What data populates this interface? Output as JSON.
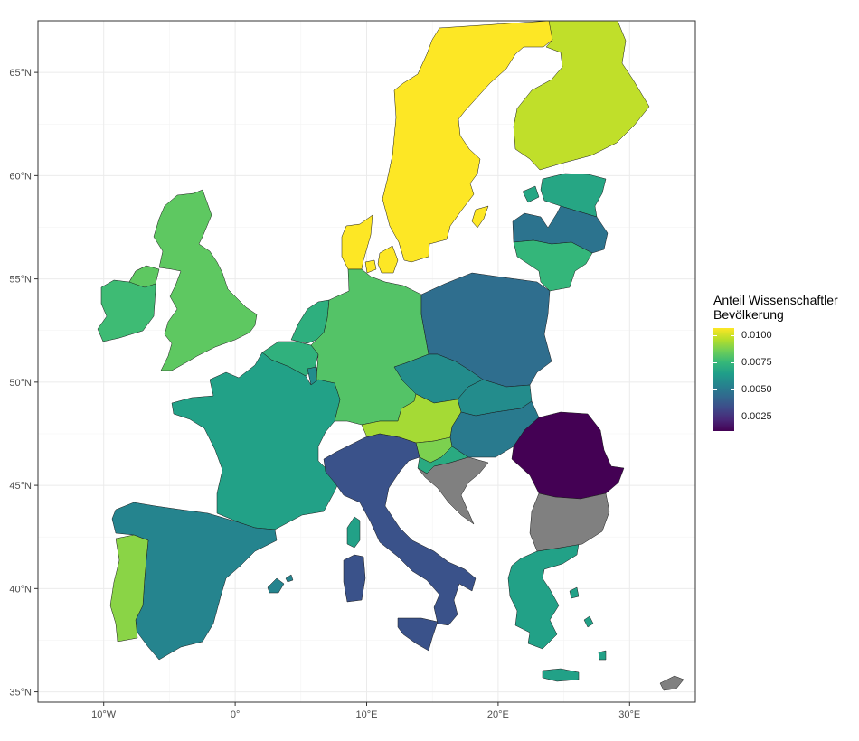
{
  "chart_data": {
    "type": "choropleth",
    "projection": "equirectangular",
    "xlim": [
      -15,
      35
    ],
    "ylim": [
      34.5,
      67.5
    ],
    "grid": true,
    "x_ticks": [
      {
        "value": -10,
        "label": "10°W"
      },
      {
        "value": 0,
        "label": "0°"
      },
      {
        "value": 10,
        "label": "10°E"
      },
      {
        "value": 20,
        "label": "20°E"
      },
      {
        "value": 30,
        "label": "30°E"
      }
    ],
    "y_ticks": [
      {
        "value": 35,
        "label": "35°N"
      },
      {
        "value": 40,
        "label": "40°N"
      },
      {
        "value": 45,
        "label": "45°N"
      },
      {
        "value": 50,
        "label": "50°N"
      },
      {
        "value": 55,
        "label": "55°N"
      },
      {
        "value": 60,
        "label": "60°N"
      },
      {
        "value": 65,
        "label": "65°N"
      }
    ],
    "legend": {
      "title_line1": "Anteil Wissenschaftler",
      "title_line2": "Bevölkerung",
      "placement": "right",
      "min": 0.0012,
      "max": 0.0107,
      "ticks": [
        {
          "value": 0.01,
          "label": "0.0100"
        },
        {
          "value": 0.0075,
          "label": "0.0075"
        },
        {
          "value": 0.005,
          "label": "0.0050"
        },
        {
          "value": 0.0025,
          "label": "0.0025"
        }
      ],
      "palette": [
        "#440154",
        "#482878",
        "#3e4a89",
        "#31688e",
        "#26828e",
        "#1f9e89",
        "#35b779",
        "#6ece58",
        "#b5de2b",
        "#fde725"
      ]
    },
    "missing_color": "#808080",
    "regions": [
      {
        "name": "Sweden",
        "value": 0.0107
      },
      {
        "name": "Finland",
        "value": 0.0098
      },
      {
        "name": "Denmark",
        "value": 0.0107
      },
      {
        "name": "Estonia",
        "value": 0.0068
      },
      {
        "name": "Latvia",
        "value": 0.0048
      },
      {
        "name": "Lithuania",
        "value": 0.0075
      },
      {
        "name": "Ireland",
        "value": 0.0077
      },
      {
        "name": "United Kingdom",
        "value": 0.0083
      },
      {
        "name": "Netherlands",
        "value": 0.0072
      },
      {
        "name": "Belgium",
        "value": 0.0073
      },
      {
        "name": "Luxembourg",
        "value": 0.0058
      },
      {
        "name": "Germany",
        "value": 0.0081
      },
      {
        "name": "Poland",
        "value": 0.0046
      },
      {
        "name": "Czechia",
        "value": 0.0058
      },
      {
        "name": "Slovakia",
        "value": 0.0058
      },
      {
        "name": "Austria",
        "value": 0.0094
      },
      {
        "name": "Slovenia",
        "value": 0.0088
      },
      {
        "name": "Hungary",
        "value": 0.0051
      },
      {
        "name": "France",
        "value": 0.0066
      },
      {
        "name": "Spain",
        "value": 0.0055
      },
      {
        "name": "Portugal",
        "value": 0.009
      },
      {
        "name": "Italy",
        "value": 0.0036
      },
      {
        "name": "Romania",
        "value": 0.0012
      },
      {
        "name": "Greece",
        "value": 0.0066
      },
      {
        "name": "Croatia",
        "value": 0.007
      },
      {
        "name": "Croatia Coast",
        "value": null
      },
      {
        "name": "Bulgaria",
        "value": null
      },
      {
        "name": "Cyprus",
        "value": null
      }
    ]
  }
}
